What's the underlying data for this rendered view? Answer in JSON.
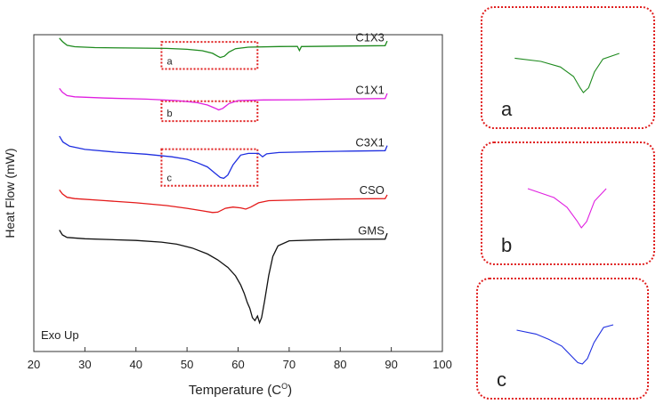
{
  "chart_data": {
    "type": "line",
    "xlabel": "Temperature (C",
    "xlabel_sup": "O",
    "xlabel_tail": ")",
    "ylabel": "Heat Flow (mW)",
    "xlim": [
      20,
      100
    ],
    "xticks": [
      "20",
      "30",
      "40",
      "50",
      "60",
      "70",
      "80",
      "90",
      "100"
    ],
    "annotation": "Exo Up",
    "grid": false,
    "series": [
      {
        "name": "C1X3",
        "color": "#1e8a1e",
        "points": [
          [
            25,
            -1.6
          ],
          [
            25.6,
            -3.2
          ],
          [
            26.5,
            -5.0
          ],
          [
            28,
            -5.7
          ],
          [
            32,
            -6.1
          ],
          [
            40,
            -6.3
          ],
          [
            46,
            -6.5
          ],
          [
            50,
            -6.9
          ],
          [
            53,
            -7.6
          ],
          [
            55,
            -8.8
          ],
          [
            56,
            -10.2
          ],
          [
            56.5,
            -10.8
          ],
          [
            57.3,
            -10.2
          ],
          [
            58.2,
            -8.2
          ],
          [
            59.5,
            -6.6
          ],
          [
            62,
            -5.9
          ],
          [
            68,
            -5.6
          ],
          [
            71.6,
            -5.5
          ],
          [
            72.0,
            -7.5
          ],
          [
            72.4,
            -5.6
          ],
          [
            80,
            -5.4
          ],
          [
            88.8,
            -5.2
          ],
          [
            89.2,
            -3.0
          ]
        ]
      },
      {
        "name": "C1X1",
        "color": "#e020e0",
        "points": [
          [
            25,
            -25.4
          ],
          [
            25.6,
            -27.2
          ],
          [
            26.5,
            -28.8
          ],
          [
            28,
            -29.4
          ],
          [
            34,
            -30.0
          ],
          [
            42,
            -30.5
          ],
          [
            48,
            -31.2
          ],
          [
            52,
            -32.2
          ],
          [
            54,
            -33.3
          ],
          [
            55.5,
            -34.8
          ],
          [
            56.2,
            -35.6
          ],
          [
            57.0,
            -34.9
          ],
          [
            58.2,
            -32.6
          ],
          [
            60,
            -31.2
          ],
          [
            65,
            -30.9
          ],
          [
            72,
            -30.8
          ],
          [
            80,
            -30.5
          ],
          [
            88.8,
            -30.2
          ],
          [
            89.2,
            -27.8
          ]
        ]
      },
      {
        "name": "C3X1",
        "color": "#1f2fe0",
        "points": [
          [
            25,
            -48.0
          ],
          [
            25.7,
            -50.8
          ],
          [
            27,
            -52.8
          ],
          [
            30,
            -54.3
          ],
          [
            36,
            -55.6
          ],
          [
            42,
            -56.6
          ],
          [
            47,
            -57.8
          ],
          [
            50,
            -59.0
          ],
          [
            52,
            -60.6
          ],
          [
            54,
            -62.6
          ],
          [
            55.5,
            -65.6
          ],
          [
            56.5,
            -67.6
          ],
          [
            57.2,
            -68.0
          ],
          [
            58,
            -66.4
          ],
          [
            59,
            -61.6
          ],
          [
            60.5,
            -57.0
          ],
          [
            62,
            -56.2
          ],
          [
            64,
            -56.2
          ],
          [
            64.8,
            -57.8
          ],
          [
            65.6,
            -56.4
          ],
          [
            68,
            -55.8
          ],
          [
            75,
            -55.4
          ],
          [
            82,
            -55.1
          ],
          [
            88.8,
            -54.9
          ],
          [
            89.2,
            -52.5
          ]
        ]
      },
      {
        "name": "CSO",
        "color": "#e41a1a",
        "points": [
          [
            25,
            -73.5
          ],
          [
            25.6,
            -75.4
          ],
          [
            26.5,
            -77.0
          ],
          [
            28,
            -77.6
          ],
          [
            34,
            -78.6
          ],
          [
            40,
            -79.6
          ],
          [
            46,
            -80.9
          ],
          [
            50,
            -82.2
          ],
          [
            53,
            -83.4
          ],
          [
            55,
            -84.2
          ],
          [
            56,
            -84.0
          ],
          [
            57.5,
            -82.2
          ],
          [
            59,
            -81.6
          ],
          [
            60.5,
            -82.0
          ],
          [
            61.5,
            -82.6
          ],
          [
            62.5,
            -81.6
          ],
          [
            64,
            -79.6
          ],
          [
            66,
            -78.6
          ],
          [
            72,
            -78.2
          ],
          [
            80,
            -77.8
          ],
          [
            88.8,
            -77.6
          ],
          [
            89.2,
            -75.8
          ]
        ]
      },
      {
        "name": "GMS",
        "color": "#111111",
        "points": [
          [
            25,
            -92.5
          ],
          [
            25.6,
            -94.8
          ],
          [
            26.5,
            -96.0
          ],
          [
            30,
            -96.6
          ],
          [
            40,
            -97.4
          ],
          [
            45,
            -98.2
          ],
          [
            48,
            -99.2
          ],
          [
            51,
            -101.0
          ],
          [
            54,
            -103.8
          ],
          [
            56,
            -106.6
          ],
          [
            58,
            -110.2
          ],
          [
            59.5,
            -114.2
          ],
          [
            60.5,
            -118.5
          ],
          [
            61.2,
            -122.5
          ],
          [
            61.8,
            -126.8
          ],
          [
            62.3,
            -129.6
          ],
          [
            62.8,
            -134.0
          ],
          [
            63.3,
            -135.4
          ],
          [
            63.8,
            -133.2
          ],
          [
            64.2,
            -136.4
          ],
          [
            64.6,
            -134.0
          ],
          [
            65.2,
            -126.0
          ],
          [
            66,
            -114.0
          ],
          [
            66.8,
            -105.0
          ],
          [
            67.8,
            -100.0
          ],
          [
            70,
            -97.6
          ],
          [
            75,
            -97.2
          ],
          [
            82,
            -96.9
          ],
          [
            88.8,
            -96.8
          ],
          [
            89.2,
            -94.0
          ]
        ]
      }
    ],
    "highlight_boxes": [
      {
        "label": "a",
        "x_range": [
          45,
          63.8
        ],
        "y_range": [
          -3.4,
          -16.2
        ]
      },
      {
        "label": "b",
        "x_range": [
          45,
          63.8
        ],
        "y_range": [
          -31.5,
          -40.9
        ]
      },
      {
        "label": "c",
        "x_range": [
          45,
          63.8
        ],
        "y_range": [
          -54.2,
          -71.5
        ]
      }
    ],
    "insets": [
      {
        "label": "a",
        "series": "C1X3",
        "color": "#1e8a1e",
        "x_range": [
          45,
          63.8
        ]
      },
      {
        "label": "b",
        "series": "C1X1",
        "color": "#e020e0",
        "x_range": [
          45,
          63.8
        ]
      },
      {
        "label": "c",
        "series": "C3X1",
        "color": "#1f2fe0",
        "x_range": [
          45,
          63.8
        ]
      }
    ]
  }
}
